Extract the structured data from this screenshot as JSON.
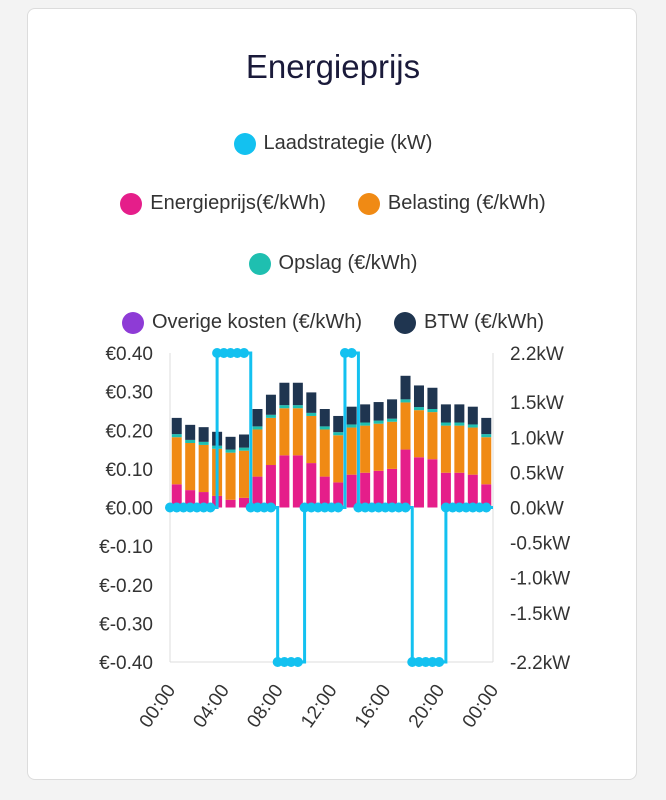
{
  "card": {
    "title": "Energieprijs"
  },
  "legend": [
    [
      {
        "label": "Laadstrategie (kW)",
        "color": "#13c1f0"
      }
    ],
    [
      {
        "label": "Energieprijs(€/kWh)",
        "color": "#e51e8a"
      },
      {
        "label": "Belasting (€/kWh)",
        "color": "#f08a14"
      }
    ],
    [
      {
        "label": "Opslag (€/kWh)",
        "color": "#1fbfb0"
      }
    ],
    [
      {
        "label": "Overige kosten (€/kWh)",
        "color": "#8e3bd6"
      },
      {
        "label": "BTW (€/kWh)",
        "color": "#1f3550"
      }
    ]
  ],
  "chart_data": {
    "type": "bar",
    "title": "Energieprijs",
    "categories": [
      "00:00",
      "01:00",
      "02:00",
      "03:00",
      "04:00",
      "05:00",
      "06:00",
      "07:00",
      "08:00",
      "09:00",
      "10:00",
      "11:00",
      "12:00",
      "13:00",
      "14:00",
      "15:00",
      "16:00",
      "17:00",
      "18:00",
      "19:00",
      "20:00",
      "21:00",
      "22:00",
      "23:00"
    ],
    "x_tick_labels": [
      "00:00",
      "04:00",
      "08:00",
      "12:00",
      "16:00",
      "20:00",
      "00:00"
    ],
    "series": [
      {
        "name": "Energieprijs(€/kWh)",
        "color": "#e51e8a",
        "values": [
          0.06,
          0.045,
          0.04,
          0.03,
          0.02,
          0.025,
          0.08,
          0.11,
          0.135,
          0.135,
          0.115,
          0.08,
          0.065,
          0.085,
          0.09,
          0.095,
          0.1,
          0.15,
          0.13,
          0.125,
          0.09,
          0.09,
          0.085,
          0.06
        ]
      },
      {
        "name": "Belasting (€/kWh)",
        "color": "#f08a14",
        "values": [
          0.122,
          0.122,
          0.122,
          0.122,
          0.122,
          0.122,
          0.122,
          0.122,
          0.122,
          0.122,
          0.122,
          0.122,
          0.122,
          0.122,
          0.122,
          0.122,
          0.122,
          0.122,
          0.122,
          0.122,
          0.122,
          0.122,
          0.122,
          0.122
        ]
      },
      {
        "name": "Opslag (€/kWh)",
        "color": "#1fbfb0",
        "values": [
          0.008,
          0.008,
          0.008,
          0.008,
          0.008,
          0.008,
          0.008,
          0.008,
          0.008,
          0.008,
          0.008,
          0.008,
          0.008,
          0.008,
          0.008,
          0.008,
          0.008,
          0.008,
          0.008,
          0.008,
          0.008,
          0.008,
          0.008,
          0.008
        ]
      },
      {
        "name": "Overige kosten (€/kWh)",
        "color": "#8e3bd6",
        "values": [
          0,
          0,
          0,
          0,
          0,
          0,
          0,
          0,
          0,
          0,
          0,
          0,
          0,
          0,
          0,
          0,
          0,
          0,
          0,
          0,
          0,
          0,
          0,
          0
        ]
      },
      {
        "name": "BTW (€/kWh)",
        "color": "#1f3550",
        "values": [
          0.042,
          0.039,
          0.038,
          0.036,
          0.033,
          0.034,
          0.045,
          0.052,
          0.058,
          0.058,
          0.053,
          0.045,
          0.042,
          0.046,
          0.047,
          0.048,
          0.05,
          0.061,
          0.056,
          0.055,
          0.047,
          0.047,
          0.046,
          0.042
        ]
      }
    ],
    "line": {
      "name": "Laadstrategie (kW)",
      "color": "#13c1f0",
      "times": [
        0,
        0.5,
        1,
        1.5,
        2,
        2.5,
        3,
        3.5,
        4,
        4.5,
        5,
        5.5,
        6,
        6.5,
        7,
        7.5,
        8,
        8.5,
        9,
        9.5,
        10,
        10.5,
        11,
        11.5,
        12,
        12.5,
        13,
        13.5,
        14,
        14.5,
        15,
        15.5,
        16,
        16.5,
        17,
        17.5,
        18,
        18.5,
        19,
        19.5,
        20,
        20.5,
        21,
        21.5,
        22,
        22.5,
        23,
        23.5,
        24
      ],
      "values": [
        0,
        0,
        0,
        0,
        0,
        0,
        0,
        2.2,
        2.2,
        2.2,
        2.2,
        2.2,
        0,
        0,
        0,
        0,
        -2.2,
        -2.2,
        -2.2,
        -2.2,
        0,
        0,
        0,
        0,
        0,
        0,
        2.2,
        2.2,
        0,
        0,
        0,
        0,
        0,
        0,
        0,
        0,
        -2.2,
        -2.2,
        -2.2,
        -2.2,
        -2.2,
        0,
        0,
        0,
        0,
        0,
        0,
        0,
        0
      ]
    },
    "y_left": {
      "min": -0.4,
      "max": 0.4,
      "ticks": [
        "€0.40",
        "€0.30",
        "€0.20",
        "€0.10",
        "€0.00",
        "€-0.10",
        "€-0.20",
        "€-0.30",
        "€-0.40"
      ]
    },
    "y_right": {
      "min": -2.2,
      "max": 2.2,
      "ticks": [
        "2.2kW",
        "1.5kW",
        "1.0kW",
        "0.5kW",
        "0.0kW",
        "-0.5kW",
        "-1.0kW",
        "-1.5kW",
        "-2.2kW"
      ],
      "tick_values": [
        2.2,
        1.5,
        1.0,
        0.5,
        0.0,
        -0.5,
        -1.0,
        -1.5,
        -2.2
      ]
    }
  }
}
